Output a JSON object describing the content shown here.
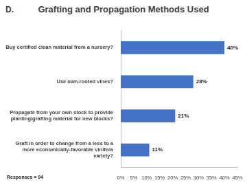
{
  "chart_data": {
    "type": "bar",
    "orientation": "horizontal",
    "title": "Grafting and Propagation Methods Used",
    "annotations": [
      "D.",
      "Responses = 94"
    ],
    "categories": [
      "Buy certified clean material from a nursery?",
      "Use own-rooted vines?",
      "Propagate from your own stock to provide planting/grafting material for new blocks?",
      "Graft in order to change from a less to a more economically-favorable vinifera variety?"
    ],
    "values": [
      40,
      28,
      21,
      11
    ],
    "value_labels": [
      "40%",
      "28%",
      "21%",
      "11%"
    ],
    "data_labels": true,
    "color": "#4472c4",
    "xlim": [
      0,
      45
    ],
    "xticks": [
      {
        "value": 0,
        "label": "0%"
      },
      {
        "value": 5,
        "label": "5%"
      },
      {
        "value": 10,
        "label": "10%"
      },
      {
        "value": 15,
        "label": "15%"
      },
      {
        "value": 20,
        "label": "20%"
      },
      {
        "value": 25,
        "label": "25%"
      },
      {
        "value": 30,
        "label": "30%"
      },
      {
        "value": 35,
        "label": "35%"
      },
      {
        "value": 40,
        "label": "40%"
      },
      {
        "value": 45,
        "label": "45%"
      }
    ],
    "grid": false
  }
}
